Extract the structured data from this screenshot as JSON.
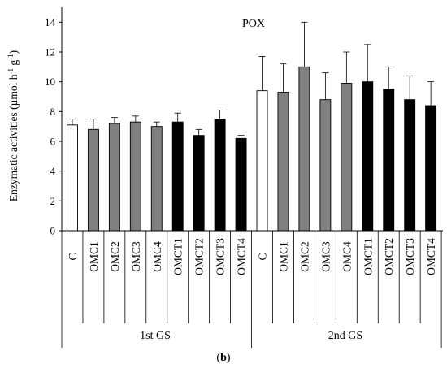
{
  "chart_data": {
    "type": "bar",
    "title": "POX",
    "ylabel_main": "Enzymatic activities (µmol h",
    "ylabel_sup1": "-1",
    "ylabel_mid": " g",
    "ylabel_sup2": "-1",
    "ylabel_end": ")",
    "ylim": [
      0,
      15
    ],
    "yticks": [
      0,
      2,
      4,
      6,
      8,
      10,
      12,
      14
    ],
    "grid": false,
    "groups": [
      {
        "name": "1st GS",
        "categories": [
          "C",
          "OMC1",
          "OMC2",
          "OMC3",
          "OMC4",
          "OMCT1",
          "OMCT2",
          "OMCT3",
          "OMCT4"
        ],
        "values": [
          7.1,
          6.8,
          7.2,
          7.3,
          7.0,
          7.3,
          6.4,
          7.5,
          6.2
        ],
        "errors": [
          0.4,
          0.7,
          0.4,
          0.4,
          0.3,
          0.6,
          0.4,
          0.6,
          0.2
        ]
      },
      {
        "name": "2nd GS",
        "categories": [
          "C",
          "OMC1",
          "OMC2",
          "OMC3",
          "OMC4",
          "OMCT1",
          "OMCT2",
          "OMCT3",
          "OMCT4"
        ],
        "values": [
          9.4,
          9.3,
          11.0,
          8.8,
          9.9,
          10.0,
          9.5,
          8.8,
          8.4
        ],
        "errors": [
          2.3,
          1.9,
          3.0,
          1.8,
          2.1,
          2.5,
          1.5,
          1.6,
          1.6
        ]
      }
    ],
    "bar_fill": [
      "#ffffff",
      "#808080",
      "#808080",
      "#808080",
      "#808080",
      "#000000",
      "#000000",
      "#000000",
      "#000000"
    ]
  },
  "panel_label": "(b)"
}
